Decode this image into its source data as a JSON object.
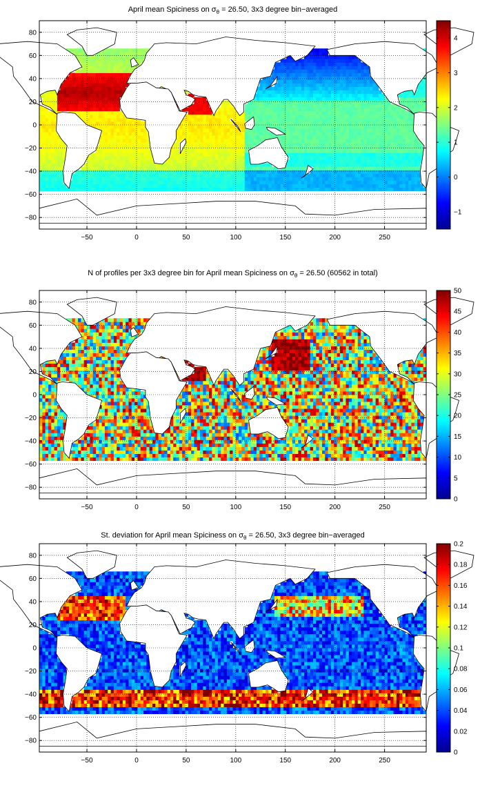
{
  "chart_data": [
    {
      "type": "heatmap",
      "title": "April mean Spiciness on σθ = 26.50, 3x3 degree bin−averaged",
      "title_parts": {
        "before": "April mean Spiciness on σ",
        "sub": "θ",
        "after": " = 26.50, 3x3 degree bin−averaged"
      },
      "xlim": [
        -98,
        292
      ],
      "ylim": [
        -90,
        90
      ],
      "xticks": [
        -50,
        0,
        50,
        100,
        150,
        200,
        250
      ],
      "xtick_labels": [
        "−50",
        "0",
        "50",
        "100",
        "150",
        "200",
        "250"
      ],
      "yticks": [
        80,
        60,
        40,
        20,
        0,
        -20,
        -40,
        -60,
        -80
      ],
      "ytick_labels": [
        "80",
        "60",
        "40",
        "20",
        "0",
        "−20",
        "−40",
        "−60",
        "−80"
      ],
      "clim": [
        -1.5,
        4.5
      ],
      "colorbar_ticks": [
        4,
        3,
        2,
        1,
        0,
        -1
      ],
      "colorbar_labels": [
        "4",
        "3",
        "2",
        "1",
        "0",
        "−1"
      ],
      "colormap": "jet",
      "grid": true
    },
    {
      "type": "heatmap",
      "title": "N of profiles per 3x3 degree bin for April mean Spiciness on σθ = 26.50 (60562 in total)",
      "title_parts": {
        "before": "N of profiles per 3x3 degree bin for April mean Spiciness on σ",
        "sub": "θ",
        "after": " = 26.50 (60562 in total)"
      },
      "xlim": [
        -98,
        292
      ],
      "ylim": [
        -90,
        90
      ],
      "xticks": [
        -50,
        0,
        50,
        100,
        150,
        200,
        250
      ],
      "xtick_labels": [
        "−50",
        "0",
        "50",
        "100",
        "150",
        "200",
        "250"
      ],
      "yticks": [
        80,
        60,
        40,
        20,
        0,
        -20,
        -40,
        -60,
        -80
      ],
      "ytick_labels": [
        "80",
        "60",
        "40",
        "20",
        "0",
        "−20",
        "−40",
        "−60",
        "−80"
      ],
      "clim": [
        0,
        50
      ],
      "colorbar_ticks": [
        50,
        45,
        40,
        35,
        30,
        25,
        20,
        15,
        10,
        5,
        0
      ],
      "colorbar_labels": [
        "50",
        "45",
        "40",
        "35",
        "30",
        "25",
        "20",
        "15",
        "10",
        "5",
        "0"
      ],
      "colormap": "jet",
      "grid": true
    },
    {
      "type": "heatmap",
      "title": "St. deviation for April mean Spiciness on σθ = 26.50, 3x3 degree bin−averaged",
      "title_parts": {
        "before": "St. deviation for April mean Spiciness on σ",
        "sub": "θ",
        "after": " = 26.50, 3x3 degree bin−averaged"
      },
      "xlim": [
        -98,
        292
      ],
      "ylim": [
        -90,
        90
      ],
      "xticks": [
        -50,
        0,
        50,
        100,
        150,
        200,
        250
      ],
      "xtick_labels": [
        "−50",
        "0",
        "50",
        "100",
        "150",
        "200",
        "250"
      ],
      "yticks": [
        80,
        60,
        40,
        20,
        0,
        -20,
        -40,
        -60,
        -80
      ],
      "ytick_labels": [
        "80",
        "60",
        "40",
        "20",
        "0",
        "−20",
        "−40",
        "−60",
        "−80"
      ],
      "clim": [
        0,
        0.2
      ],
      "colorbar_ticks": [
        0.2,
        0.18,
        0.16,
        0.14,
        0.12,
        0.1,
        0.08,
        0.06,
        0.04,
        0.02,
        0
      ],
      "colorbar_labels": [
        "0.2",
        "0.18",
        "0.16",
        "0.14",
        "0.12",
        "0.1",
        "0.08",
        "0.06",
        "0.04",
        "0.02",
        "0"
      ],
      "colormap": "jet",
      "grid": true
    }
  ]
}
